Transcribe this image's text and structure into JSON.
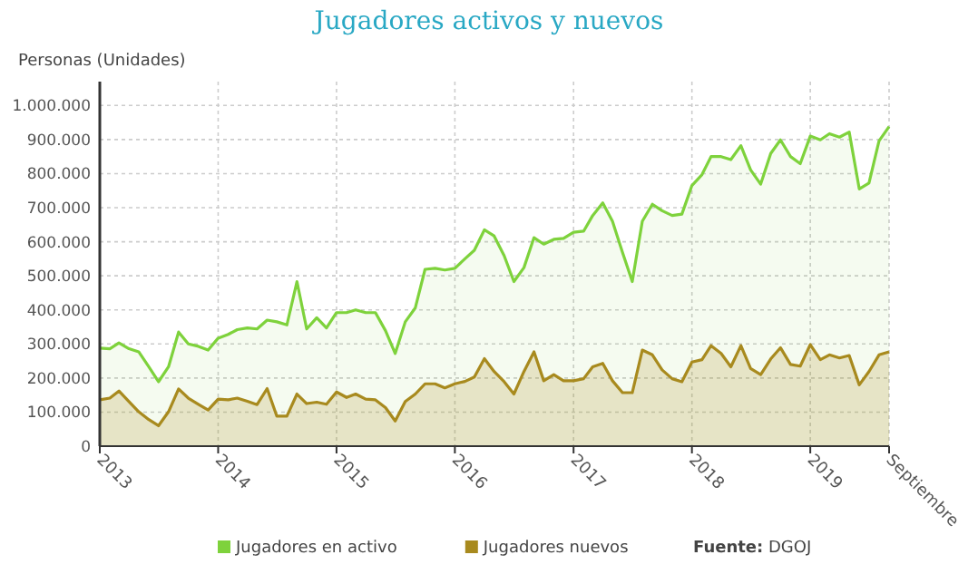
{
  "chart_data": {
    "type": "area",
    "title": "Jugadores activos y nuevos",
    "ylabel": "Personas (Unidades)",
    "x": [
      "2013-01",
      "2013-02",
      "2013-03",
      "2013-04",
      "2013-05",
      "2013-06",
      "2013-07",
      "2013-08",
      "2013-09",
      "2013-10",
      "2013-11",
      "2013-12",
      "2014-01",
      "2014-02",
      "2014-03",
      "2014-04",
      "2014-05",
      "2014-06",
      "2014-07",
      "2014-08",
      "2014-09",
      "2014-10",
      "2014-11",
      "2014-12",
      "2015-01",
      "2015-02",
      "2015-03",
      "2015-04",
      "2015-05",
      "2015-06",
      "2015-07",
      "2015-08",
      "2015-09",
      "2015-10",
      "2015-11",
      "2015-12",
      "2016-01",
      "2016-02",
      "2016-03",
      "2016-04",
      "2016-05",
      "2016-06",
      "2016-07",
      "2016-08",
      "2016-09",
      "2016-10",
      "2016-11",
      "2016-12",
      "2017-01",
      "2017-02",
      "2017-03",
      "2017-04",
      "2017-05",
      "2017-06",
      "2017-07",
      "2017-08",
      "2017-09",
      "2017-10",
      "2017-11",
      "2017-12",
      "2018-01",
      "2018-02",
      "2018-03",
      "2018-04",
      "2018-05",
      "2018-06",
      "2018-07",
      "2018-08",
      "2018-09",
      "2018-10",
      "2018-11",
      "2018-12",
      "2019-01",
      "2019-02",
      "2019-03",
      "2019-04",
      "2019-05",
      "2019-06",
      "2019-07",
      "2019-08",
      "2019-09"
    ],
    "series": [
      {
        "name": "Jugadores en activo",
        "color": "#7ed23c",
        "values": [
          288000,
          286000,
          303000,
          286000,
          277000,
          233000,
          189000,
          233000,
          335000,
          300000,
          293000,
          282000,
          317000,
          328000,
          342000,
          347000,
          344000,
          370000,
          365000,
          356000,
          483000,
          344000,
          377000,
          347000,
          392000,
          392000,
          400000,
          392000,
          392000,
          339000,
          272000,
          365000,
          406000,
          519000,
          522000,
          517000,
          522000,
          550000,
          575000,
          635000,
          617000,
          559000,
          483000,
          524000,
          612000,
          593000,
          607000,
          610000,
          628000,
          631000,
          677000,
          714000,
          660000,
          568000,
          483000,
          660000,
          710000,
          691000,
          677000,
          681000,
          765000,
          797000,
          850000,
          850000,
          841000,
          882000,
          811000,
          769000,
          859000,
          899000,
          850000,
          829000,
          910000,
          899000,
          917000,
          907000,
          922000,
          755000,
          772000,
          896000,
          938000
        ]
      },
      {
        "name": "Jugadores nuevos",
        "color": "#a88a1e",
        "values": [
          136000,
          141000,
          162000,
          131000,
          101000,
          78000,
          60000,
          101000,
          168000,
          141000,
          123000,
          106000,
          138000,
          136000,
          141000,
          132000,
          122000,
          169000,
          88000,
          88000,
          153000,
          125000,
          129000,
          123000,
          159000,
          143000,
          153000,
          138000,
          136000,
          113000,
          74000,
          131000,
          153000,
          183000,
          183000,
          171000,
          183000,
          190000,
          203000,
          257000,
          219000,
          189000,
          153000,
          219000,
          277000,
          192000,
          210000,
          192000,
          192000,
          198000,
          233000,
          243000,
          192000,
          157000,
          157000,
          282000,
          268000,
          224000,
          198000,
          189000,
          247000,
          254000,
          295000,
          272000,
          233000,
          295000,
          228000,
          210000,
          256000,
          289000,
          240000,
          235000,
          298000,
          254000,
          268000,
          259000,
          266000,
          180000,
          219000,
          268000,
          277000
        ]
      }
    ],
    "xlim": [
      "2013-01",
      "2019-09"
    ],
    "xticks": [
      {
        "value": "2013-01",
        "label": "2013"
      },
      {
        "value": "2014-01",
        "label": "2014"
      },
      {
        "value": "2015-01",
        "label": "2015"
      },
      {
        "value": "2016-01",
        "label": "2016"
      },
      {
        "value": "2017-01",
        "label": "2017"
      },
      {
        "value": "2018-01",
        "label": "2018"
      },
      {
        "value": "2019-01",
        "label": "2019"
      },
      {
        "value": "2019-09",
        "label": "Septiembre"
      }
    ],
    "ylim": [
      0,
      1070000
    ],
    "yticks": [
      0,
      {
        "value": 100000,
        "label": "100.000"
      },
      {
        "value": 200000,
        "label": "200.000"
      },
      {
        "value": 300000,
        "label": "300.000"
      },
      {
        "value": 400000,
        "label": "400.000"
      },
      {
        "value": 500000,
        "label": "500.000"
      },
      {
        "value": 600000,
        "label": "600.000"
      },
      {
        "value": 700000,
        "label": "700.000"
      },
      {
        "value": 800000,
        "label": "800.000"
      },
      {
        "value": 900000,
        "label": "900.000"
      },
      {
        "value": 1000000,
        "label": "1.000.000"
      }
    ],
    "grid": true,
    "legend": "bottom",
    "annotations": [
      "Fuente: DGOJ"
    ]
  }
}
